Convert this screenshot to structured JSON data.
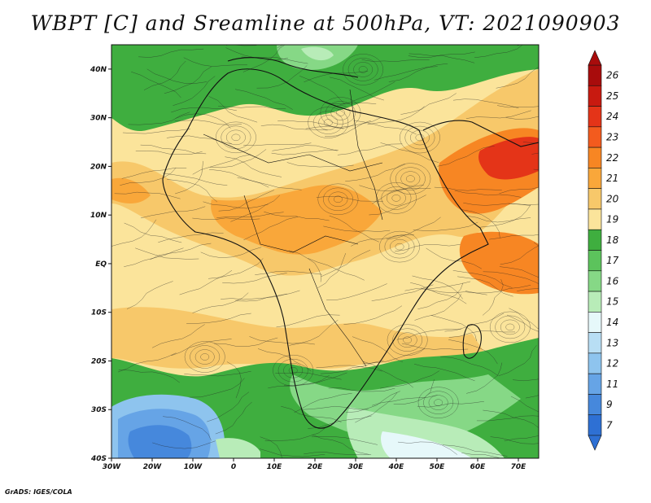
{
  "title": "WBPT [C] and Sreamline at 500hPa, VT: 2021090903",
  "footer": "GrADS: IGES/COLA",
  "map": {
    "extent": {
      "lon": [
        -30,
        75
      ],
      "lat": [
        -40,
        45
      ]
    },
    "lat_ticks": [
      {
        "lat": 40,
        "label": "40N"
      },
      {
        "lat": 30,
        "label": "30N"
      },
      {
        "lat": 20,
        "label": "20N"
      },
      {
        "lat": 10,
        "label": "10N"
      },
      {
        "lat": 0,
        "label": "EQ"
      },
      {
        "lat": -10,
        "label": "10S"
      },
      {
        "lat": -20,
        "label": "20S"
      },
      {
        "lat": -30,
        "label": "30S"
      },
      {
        "lat": -40,
        "label": "40S"
      }
    ],
    "lon_ticks": [
      {
        "lon": -30,
        "label": "30W"
      },
      {
        "lon": -20,
        "label": "20W"
      },
      {
        "lon": -10,
        "label": "10W"
      },
      {
        "lon": 0,
        "label": "0"
      },
      {
        "lon": 10,
        "label": "10E"
      },
      {
        "lon": 20,
        "label": "20E"
      },
      {
        "lon": 30,
        "label": "30E"
      },
      {
        "lon": 40,
        "label": "40E"
      },
      {
        "lon": 50,
        "label": "50E"
      },
      {
        "lon": 60,
        "label": "60E"
      },
      {
        "lon": 70,
        "label": "70E"
      }
    ]
  },
  "colorbar": {
    "labels": [
      "26",
      "25",
      "24",
      "23",
      "22",
      "21",
      "20",
      "19",
      "18",
      "17",
      "16",
      "15",
      "14",
      "13",
      "12",
      "11",
      "9",
      "7"
    ],
    "colors": [
      "#a80c0c",
      "#c81a10",
      "#e43418",
      "#f35b1e",
      "#f78623",
      "#f9a73a",
      "#f7c86a",
      "#fbe49b",
      "#3fae3f",
      "#5cc35c",
      "#86d886",
      "#b8ecb8",
      "#e6f8fa",
      "#b8def4",
      "#8ec4ee",
      "#66a4e6",
      "#4688dc",
      "#2e70d4"
    ]
  }
}
